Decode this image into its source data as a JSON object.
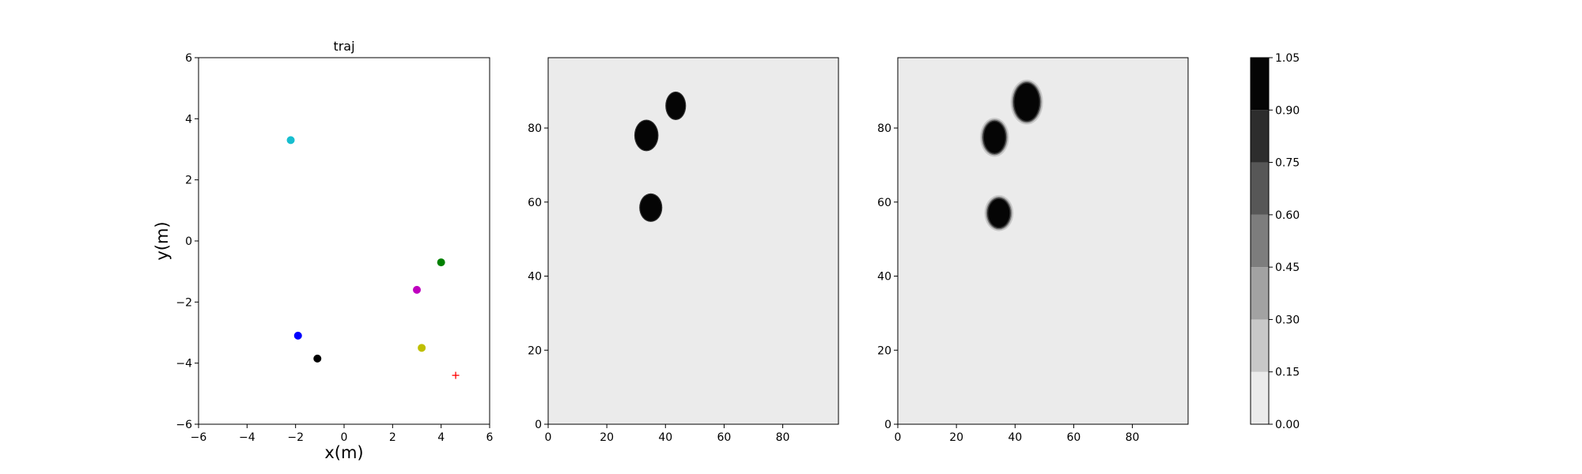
{
  "chart_data": [
    {
      "type": "scatter",
      "title": "traj",
      "xlabel": "x(m)",
      "ylabel": "y(m)",
      "xlim": [
        -6,
        6
      ],
      "ylim": [
        -6,
        6
      ],
      "xticks": [
        -6,
        -4,
        -2,
        0,
        2,
        4,
        6
      ],
      "yticks": [
        -6,
        -4,
        -2,
        0,
        2,
        4,
        6
      ],
      "grid": false,
      "points": [
        {
          "x": -2.2,
          "y": 3.3,
          "color": "#17becf",
          "marker": "circle"
        },
        {
          "x": 4.0,
          "y": -0.7,
          "color": "#008000",
          "marker": "circle"
        },
        {
          "x": 3.0,
          "y": -1.6,
          "color": "#bf00bf",
          "marker": "circle"
        },
        {
          "x": -1.9,
          "y": -3.1,
          "color": "#0000ff",
          "marker": "circle"
        },
        {
          "x": 3.2,
          "y": -3.5,
          "color": "#bfbf00",
          "marker": "circle"
        },
        {
          "x": -1.1,
          "y": -3.85,
          "color": "#000000",
          "marker": "circle"
        },
        {
          "x": 4.6,
          "y": -4.4,
          "color": "#ff0000",
          "marker": "plus"
        }
      ]
    },
    {
      "type": "heatmap",
      "title": "",
      "xlim": [
        0,
        99
      ],
      "ylim": [
        0,
        99
      ],
      "xticks": [
        0,
        20,
        40,
        60,
        80
      ],
      "yticks": [
        0,
        20,
        40,
        60,
        80
      ],
      "background_value": 0.07,
      "blobs": [
        {
          "cx": 43.5,
          "cy": 86,
          "rx": 3.2,
          "ry": 3.6,
          "value": 1.0
        },
        {
          "cx": 33.5,
          "cy": 78,
          "rx": 3.8,
          "ry": 4.0,
          "value": 1.0
        },
        {
          "cx": 35,
          "cy": 58.5,
          "rx": 3.6,
          "ry": 3.6,
          "value": 1.0
        }
      ]
    },
    {
      "type": "heatmap",
      "title": "",
      "xlim": [
        0,
        99
      ],
      "ylim": [
        0,
        99
      ],
      "xticks": [
        0,
        20,
        40,
        60,
        80
      ],
      "yticks": [
        0,
        20,
        40,
        60,
        80
      ],
      "background_value": 0.07,
      "blobs": [
        {
          "cx": 44,
          "cy": 87,
          "rx": 4.2,
          "ry": 5.0,
          "value": 1.0
        },
        {
          "cx": 33,
          "cy": 77.5,
          "rx": 3.6,
          "ry": 4.2,
          "value": 1.0
        },
        {
          "cx": 34.5,
          "cy": 57,
          "rx": 3.6,
          "ry": 3.8,
          "value": 1.0
        }
      ]
    },
    {
      "type": "colorbar",
      "ticks": [
        0.0,
        0.15,
        0.3,
        0.45,
        0.6,
        0.75,
        0.9,
        1.05
      ],
      "tick_labels": [
        "0.00",
        "0.15",
        "0.30",
        "0.45",
        "0.60",
        "0.75",
        "0.90",
        "1.05"
      ],
      "level_colors": [
        "#ebebeb",
        "#c8c8c8",
        "#a2a2a2",
        "#7d7d7d",
        "#575757",
        "#2d2d2d",
        "#050505"
      ]
    }
  ]
}
